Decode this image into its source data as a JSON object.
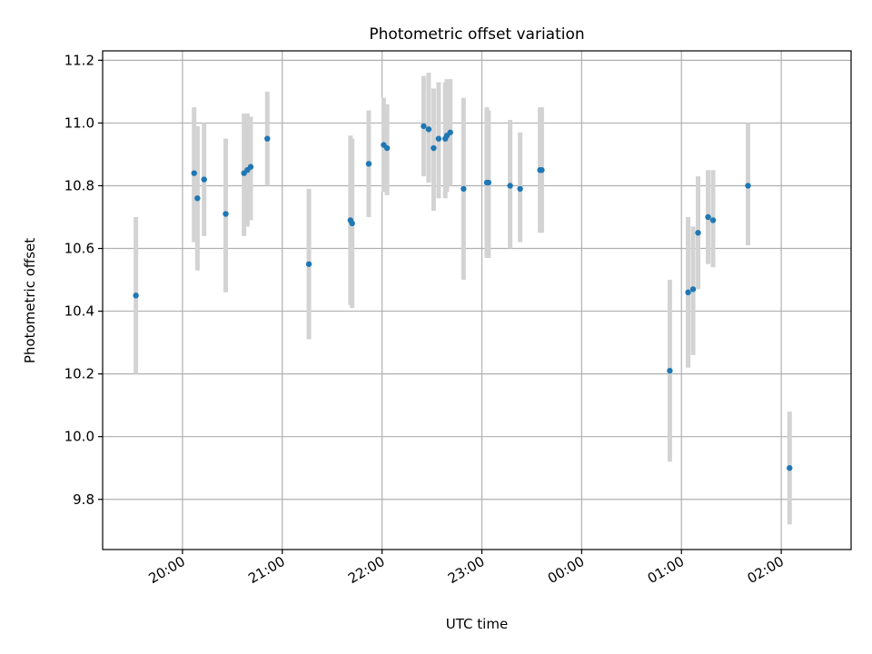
{
  "chart_data": {
    "type": "scatter",
    "title": "Photometric offset variation",
    "xlabel": "UTC time",
    "ylabel": "Photometric offset",
    "xlim": [
      "19:12",
      "02:42"
    ],
    "ylim": [
      9.64,
      11.23
    ],
    "x_ticks": [
      "20:00",
      "21:00",
      "22:00",
      "23:00",
      "00:00",
      "01:00",
      "02:00"
    ],
    "y_ticks": [
      "9.8",
      "10.0",
      "10.2",
      "10.4",
      "10.6",
      "10.8",
      "11.0",
      "11.2"
    ],
    "grid": true,
    "colors": {
      "point": "#1f77b4",
      "errorbar": "#d3d3d3",
      "grid": "#b0b0b0"
    },
    "points": [
      {
        "t": "19:32",
        "y": 10.45,
        "lo": 10.2,
        "hi": 10.7
      },
      {
        "t": "20:07",
        "y": 10.84,
        "lo": 10.62,
        "hi": 11.05
      },
      {
        "t": "20:09",
        "y": 10.76,
        "lo": 10.53,
        "hi": 10.99
      },
      {
        "t": "20:13",
        "y": 10.82,
        "lo": 10.64,
        "hi": 11.0
      },
      {
        "t": "20:26",
        "y": 10.71,
        "lo": 10.46,
        "hi": 10.95
      },
      {
        "t": "20:37",
        "y": 10.84,
        "lo": 10.64,
        "hi": 11.03
      },
      {
        "t": "20:39",
        "y": 10.85,
        "lo": 10.67,
        "hi": 11.03
      },
      {
        "t": "20:41",
        "y": 10.86,
        "lo": 10.69,
        "hi": 11.02
      },
      {
        "t": "20:51",
        "y": 10.95,
        "lo": 10.8,
        "hi": 11.1
      },
      {
        "t": "21:16",
        "y": 10.55,
        "lo": 10.31,
        "hi": 10.79
      },
      {
        "t": "21:41",
        "y": 10.69,
        "lo": 10.42,
        "hi": 10.96
      },
      {
        "t": "21:42",
        "y": 10.68,
        "lo": 10.41,
        "hi": 10.95
      },
      {
        "t": "21:52",
        "y": 10.87,
        "lo": 10.7,
        "hi": 11.04
      },
      {
        "t": "22:01",
        "y": 10.93,
        "lo": 10.78,
        "hi": 11.08
      },
      {
        "t": "22:03",
        "y": 10.92,
        "lo": 10.77,
        "hi": 11.06
      },
      {
        "t": "22:25",
        "y": 10.99,
        "lo": 10.83,
        "hi": 11.15
      },
      {
        "t": "22:28",
        "y": 10.98,
        "lo": 10.81,
        "hi": 11.16
      },
      {
        "t": "22:31",
        "y": 10.92,
        "lo": 10.72,
        "hi": 11.11
      },
      {
        "t": "22:34",
        "y": 10.95,
        "lo": 10.76,
        "hi": 11.13
      },
      {
        "t": "22:38",
        "y": 10.95,
        "lo": 10.76,
        "hi": 11.13
      },
      {
        "t": "22:39",
        "y": 10.96,
        "lo": 10.78,
        "hi": 11.14
      },
      {
        "t": "22:41",
        "y": 10.97,
        "lo": 10.8,
        "hi": 11.14
      },
      {
        "t": "22:49",
        "y": 10.79,
        "lo": 10.5,
        "hi": 11.08
      },
      {
        "t": "23:03",
        "y": 10.81,
        "lo": 10.57,
        "hi": 11.05
      },
      {
        "t": "23:04",
        "y": 10.81,
        "lo": 10.57,
        "hi": 11.04
      },
      {
        "t": "23:17",
        "y": 10.8,
        "lo": 10.6,
        "hi": 11.01
      },
      {
        "t": "23:23",
        "y": 10.79,
        "lo": 10.62,
        "hi": 10.97
      },
      {
        "t": "23:35",
        "y": 10.85,
        "lo": 10.65,
        "hi": 11.05
      },
      {
        "t": "23:36",
        "y": 10.85,
        "lo": 10.65,
        "hi": 11.05
      },
      {
        "t": "00:53",
        "y": 10.21,
        "lo": 9.92,
        "hi": 10.5
      },
      {
        "t": "01:04",
        "y": 10.46,
        "lo": 10.22,
        "hi": 10.7
      },
      {
        "t": "01:07",
        "y": 10.47,
        "lo": 10.26,
        "hi": 10.67
      },
      {
        "t": "01:10",
        "y": 10.65,
        "lo": 10.47,
        "hi": 10.83
      },
      {
        "t": "01:16",
        "y": 10.7,
        "lo": 10.55,
        "hi": 10.85
      },
      {
        "t": "01:19",
        "y": 10.69,
        "lo": 10.54,
        "hi": 10.85
      },
      {
        "t": "01:40",
        "y": 10.8,
        "lo": 10.61,
        "hi": 11.0
      },
      {
        "t": "02:05",
        "y": 9.9,
        "lo": 9.72,
        "hi": 10.08
      }
    ]
  }
}
